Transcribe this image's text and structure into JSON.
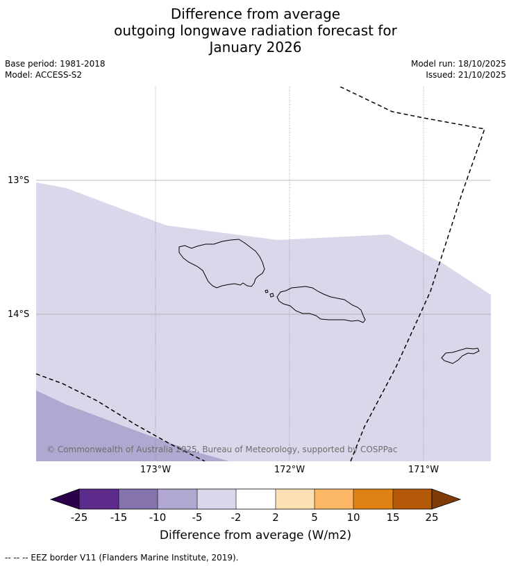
{
  "title": {
    "line1": "Difference from average",
    "line2": "outgoing longwave radiation forecast for",
    "line3": "January 2026"
  },
  "meta": {
    "base_period": "Base period: 1981-2018",
    "model": "Model: ACCESS-S2",
    "model_run": "Model run: 18/10/2025",
    "issued": "Issued: 21/10/2025"
  },
  "axes": {
    "lat_labels": [
      "13°S",
      "14°S"
    ],
    "lon_labels": [
      "173°W",
      "172°W",
      "171°W"
    ]
  },
  "copyright": "© Commonwealth of Australia 2025, Bureau of Meteorology, supported by COSPPac",
  "colorbar": {
    "title": "Difference from average (W/m2)",
    "tick_labels": [
      "-25",
      "-15",
      "-10",
      "-5",
      "-2",
      "2",
      "5",
      "10",
      "15",
      "25"
    ],
    "colors": {
      "below_min": "#2d004b",
      "bins": [
        "#5b2a8b",
        "#8473ad",
        "#b0a8d0",
        "#d8d8ea",
        "#ffffff",
        "#fde0b4",
        "#fbb766",
        "#e08213",
        "#b35806"
      ],
      "above_max": "#7f3b08"
    }
  },
  "footer": "--  --  -- EEZ border V11 (Flanders Marine Institute, 2019)."
}
